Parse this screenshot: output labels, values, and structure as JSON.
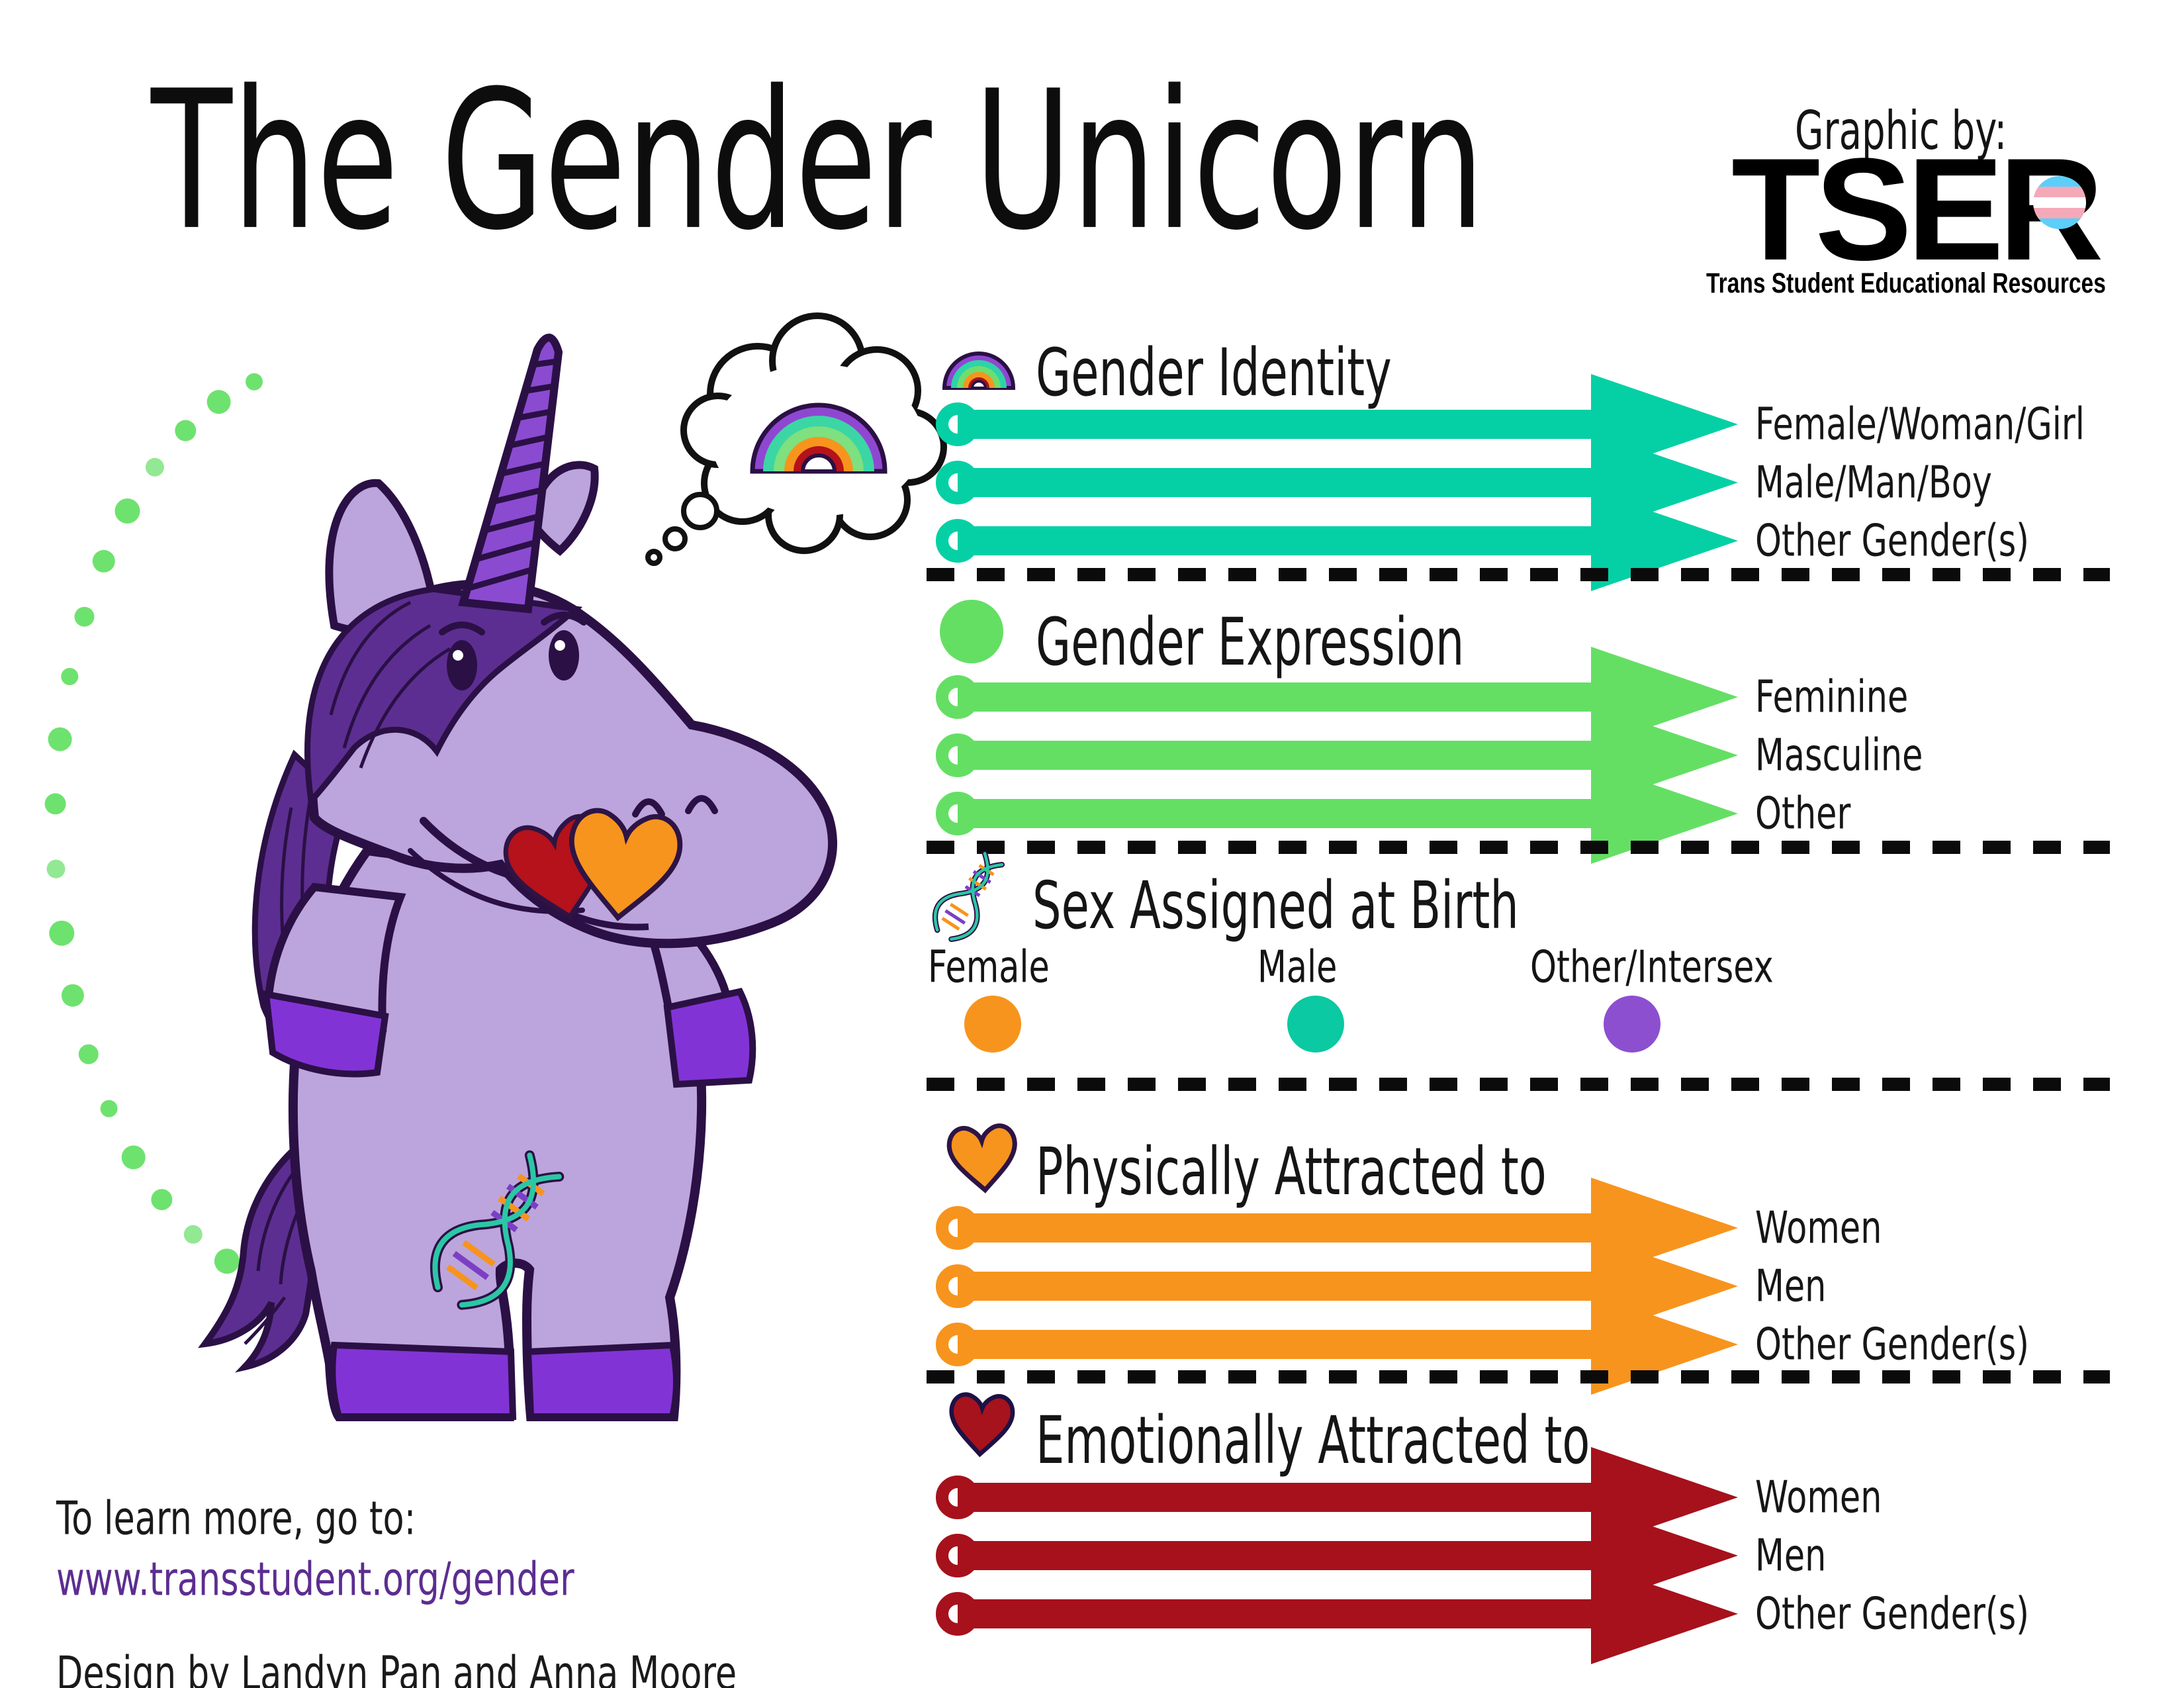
{
  "title": "The Gender Unicorn",
  "credit": {
    "graphic_by": "Graphic by:",
    "logo_text": "TSER",
    "org_name": "Trans Student Educational Resources",
    "flag_colors": [
      "#5BCEFA",
      "#F5A9B8",
      "#FFFFFF"
    ]
  },
  "sections": {
    "gender_identity": {
      "icon": "rainbow-icon",
      "title": "Gender Identity",
      "arrow_color": "#05D0A5",
      "labels": [
        "Female/Woman/Girl",
        "Male/Man/Boy",
        "Other Gender(s)"
      ]
    },
    "gender_expression": {
      "icon": "green-circle-icon",
      "title": "Gender Expression",
      "arrow_color": "#64DF64",
      "labels": [
        "Feminine",
        "Masculine",
        "Other"
      ]
    },
    "sex_assigned": {
      "icon": "dna-icon",
      "title": "Sex Assigned at Birth",
      "options": [
        {
          "label": "Female",
          "color": "#F7941D"
        },
        {
          "label": "Male",
          "color": "#0BC9A2"
        },
        {
          "label": "Other/Intersex",
          "color": "#8C4FD0"
        }
      ]
    },
    "physical": {
      "icon": "orange-heart-icon",
      "title": "Physically Attracted to",
      "arrow_color": "#F7941D",
      "labels": [
        "Women",
        "Men",
        "Other Gender(s)"
      ]
    },
    "emotional": {
      "icon": "red-heart-icon",
      "title": "Emotionally Attracted to",
      "arrow_color": "#A6111C",
      "labels": [
        "Women",
        "Men",
        "Other Gender(s)"
      ]
    }
  },
  "footer": {
    "learn_more": "To learn more, go to:",
    "url": "www.transstudent.org/gender",
    "design_credit": "Design by Landyn Pan and Anna Moore"
  },
  "illustration": {
    "unicorn_body_color": "#BCA5DC",
    "unicorn_outline_color": "#2B1045",
    "mane_color": "#5C2E91",
    "cuff_color": "#8233D6",
    "dot_arc_color": "#6EE26E"
  }
}
